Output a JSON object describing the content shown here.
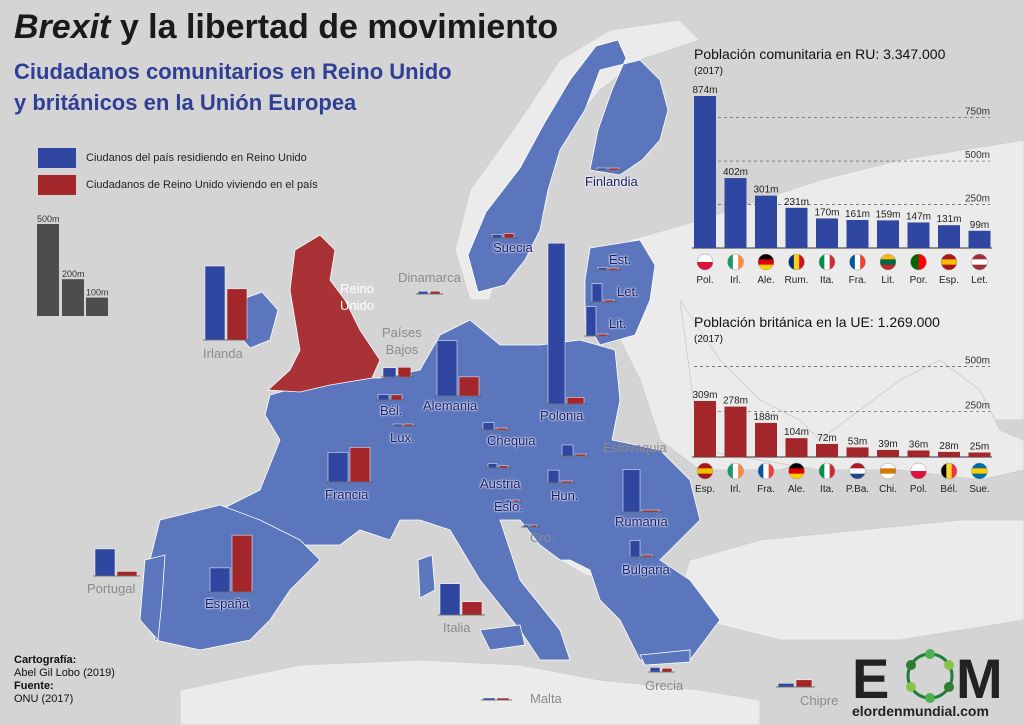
{
  "title": {
    "italic": "Brexit",
    "rest": " y la libertad de movimiento"
  },
  "subtitle": {
    "line1": "Ciudadanos comunitarios en Reino Unido",
    "line2": "y británicos en la Unión Europea"
  },
  "legend": {
    "blue_label": "Ciudanos del país residiendo en Reino Unido",
    "red_label": "Ciudadanos de Reino Unido viviendo en el país",
    "scale_labels": [
      "500m",
      "200m",
      "100m"
    ]
  },
  "colors": {
    "eu_blue": "#5b76bc",
    "bar_blue": "#2f47a0",
    "bar_red": "#a3262a",
    "uk_red": "#a83236",
    "land_grey": "#ebebeb",
    "sea": "#d4d4d4",
    "scale_grey": "#4d4d4d"
  },
  "countries": {
    "reino_unido": "Reino\nUnido",
    "irlanda": "Irlanda",
    "dinamarca": "Dinamarca",
    "suecia": "Suecia",
    "finlandia": "Finlandia",
    "estonia": "Est.",
    "letonia": "Let.",
    "lituania": "Lit.",
    "paises_bajos": "Países\nBajos",
    "belgica": "Bél.",
    "luxemburgo": "Lux.",
    "alemania": "Alemania",
    "polonia": "Polonia",
    "chequia": "Chequia",
    "eslovaquia": "Eslovaquia",
    "austria": "Austria",
    "hungria": "Hun.",
    "eslovenia": "Eslo.",
    "croacia": "Cro.",
    "francia": "Francia",
    "rumania": "Rumanía",
    "bulgaria": "Bulgaria",
    "portugal": "Portugal",
    "espana": "España",
    "italia": "Italia",
    "grecia": "Grecia",
    "malta": "Malta",
    "chipre": "Chipre"
  },
  "panel_uk": {
    "title": "Población comunitaria en RU: 3.347.000",
    "year": "(2017)",
    "gridlines": [
      "750m",
      "500m",
      "250m"
    ],
    "flags": [
      "poland-flag",
      "ireland-flag",
      "germany-flag",
      "romania-flag",
      "italy-flag",
      "france-flag",
      "lithuania-flag",
      "portugal-flag",
      "spain-flag",
      "latvia-flag"
    ]
  },
  "panel_eu": {
    "title": "Población británica en la UE: 1.269.000",
    "year": "(2017)",
    "gridlines": [
      "500m",
      "250m"
    ],
    "flags": [
      "spain-flag",
      "ireland-flag",
      "france-flag",
      "germany-flag",
      "italy-flag",
      "netherlands-flag",
      "cyprus-flag",
      "poland-flag",
      "belgium-flag",
      "sweden-flag"
    ]
  },
  "credits": {
    "cartografia_label": "Cartografía:",
    "cartografia": "Abel Gil Lobo (2019)",
    "fuente_label": "Fuente:",
    "fuente": "ONU (2017)"
  },
  "logo": {
    "letters": "EOM",
    "site": "elordenmundial.com"
  },
  "chart_data": [
    {
      "type": "bar",
      "title": "Población comunitaria en RU: 3.347.000",
      "categories": [
        "Pol.",
        "Irl.",
        "Ale.",
        "Rum.",
        "Ita.",
        "Fra.",
        "Lit.",
        "Por.",
        "Esp.",
        "Let."
      ],
      "values": [
        874,
        402,
        301,
        231,
        170,
        161,
        159,
        147,
        131,
        99
      ],
      "value_labels": [
        "874m",
        "402m",
        "301m",
        "231m",
        "170m",
        "161m",
        "159m",
        "147m",
        "131m",
        "99m"
      ],
      "ylim": [
        0,
        874
      ],
      "color": "#2f47a0"
    },
    {
      "type": "bar",
      "title": "Población británica en la UE: 1.269.000",
      "categories": [
        "Esp.",
        "Irl.",
        "Fra.",
        "Ale.",
        "Ita.",
        "P.Ba.",
        "Chi.",
        "Pol.",
        "Bél.",
        "Sue."
      ],
      "values": [
        309,
        278,
        188,
        104,
        72,
        53,
        39,
        36,
        28,
        25
      ],
      "value_labels": [
        "309m",
        "278m",
        "188m",
        "104m",
        "72m",
        "53m",
        "39m",
        "36m",
        "28m",
        "25m"
      ],
      "ylim": [
        0,
        500
      ],
      "color": "#a3262a"
    },
    {
      "type": "bar",
      "title": "",
      "categories": [
        "Irlanda",
        "Francia",
        "España",
        "Portugal",
        "Alemania",
        "Polonia",
        "Italia",
        "Rumanía",
        "Países Bajos",
        "Bélgica",
        "Luxemburgo",
        "Dinamarca",
        "Suecia",
        "Finlandia",
        "Est.",
        "Let.",
        "Lit.",
        "Chequia",
        "Eslovaquia",
        "Austria",
        "Hun.",
        "Eslo.",
        "Cro.",
        "Bulgaria",
        "Grecia",
        "Malta",
        "Chipre"
      ],
      "series": [
        {
          "name": "Ciudanos del país residiendo en Reino Unido",
          "values": [
            402,
            161,
            131,
            147,
            301,
            874,
            170,
            231,
            50,
            30,
            5,
            15,
            20,
            10,
            15,
            99,
            159,
            40,
            60,
            25,
            70,
            3,
            10,
            90,
            25,
            10,
            20
          ]
        },
        {
          "name": "Ciudadanos de Reino Unido viviendo en el país",
          "values": [
            278,
            188,
            309,
            25,
            104,
            36,
            72,
            6,
            53,
            28,
            5,
            15,
            25,
            6,
            2,
            1,
            2,
            6,
            2,
            12,
            4,
            2,
            2,
            5,
            20,
            2,
            39
          ]
        }
      ],
      "scale_reference": [
        500,
        200,
        100
      ]
    }
  ]
}
